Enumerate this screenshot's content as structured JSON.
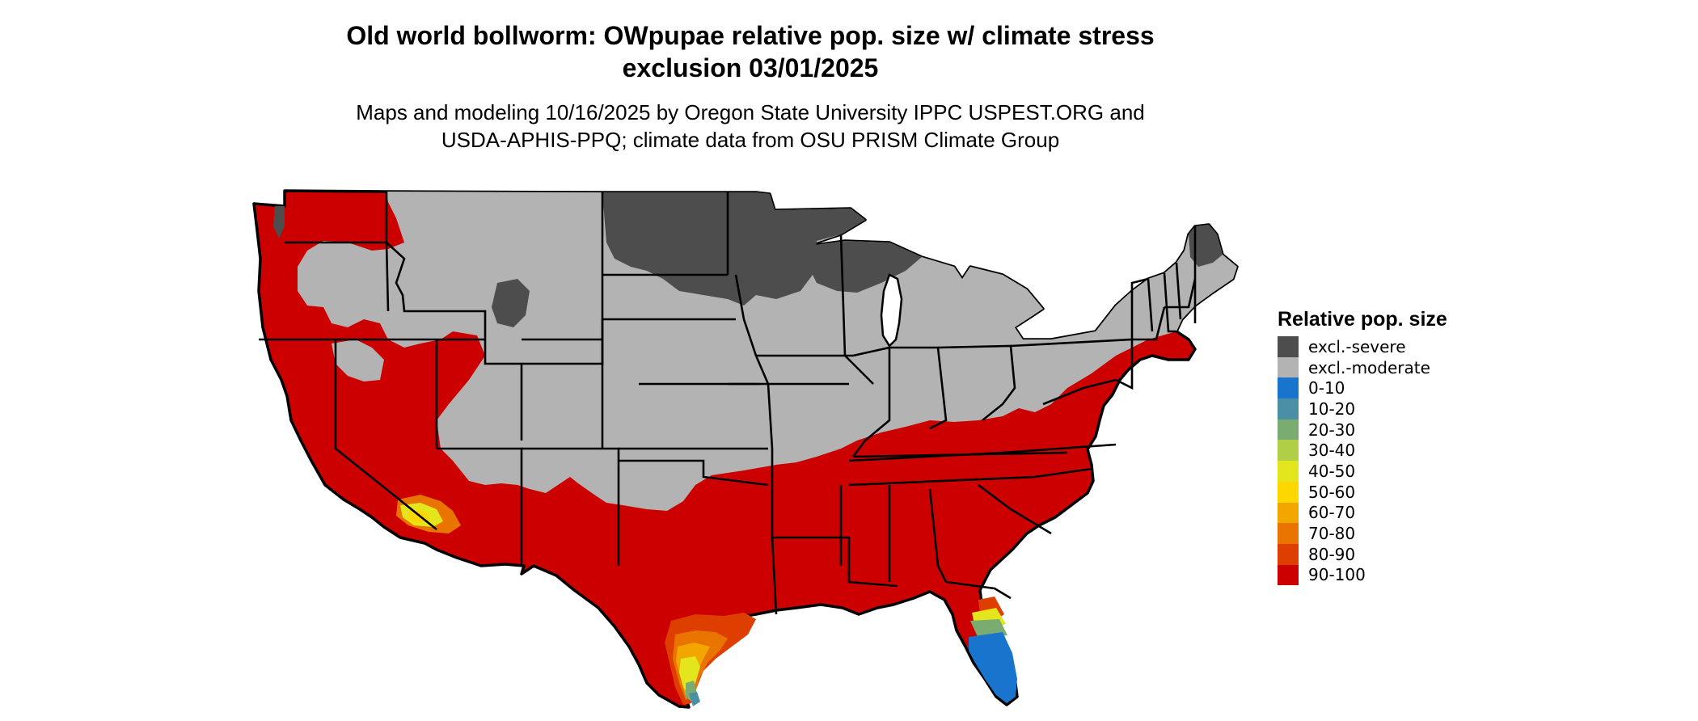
{
  "title": {
    "line1": "Old world bollworm: OWpupae relative pop. size w/ climate stress",
    "line2": "exclusion 03/01/2025"
  },
  "subtitle": {
    "line1": "Maps and modeling 10/16/2025 by Oregon State University IPPC USPEST.ORG and",
    "line2": "USDA-APHIS-PPQ; climate data from OSU PRISM Climate Group"
  },
  "legend": {
    "title": "Relative pop. size",
    "items": [
      {
        "label": "excl.-severe",
        "color": "#4d4d4d"
      },
      {
        "label": "excl.-moderate",
        "color": "#b3b3b3"
      },
      {
        "label": "0-10",
        "color": "#1874cd"
      },
      {
        "label": "10-20",
        "color": "#4a8fa3"
      },
      {
        "label": "20-30",
        "color": "#7aab70"
      },
      {
        "label": "30-40",
        "color": "#b0cf46"
      },
      {
        "label": "40-50",
        "color": "#e3e61c"
      },
      {
        "label": "50-60",
        "color": "#ffd700"
      },
      {
        "label": "60-70",
        "color": "#f3a500"
      },
      {
        "label": "70-80",
        "color": "#e97500"
      },
      {
        "label": "80-90",
        "color": "#de3f00"
      },
      {
        "label": "90-100",
        "color": "#cd0000"
      }
    ]
  }
}
